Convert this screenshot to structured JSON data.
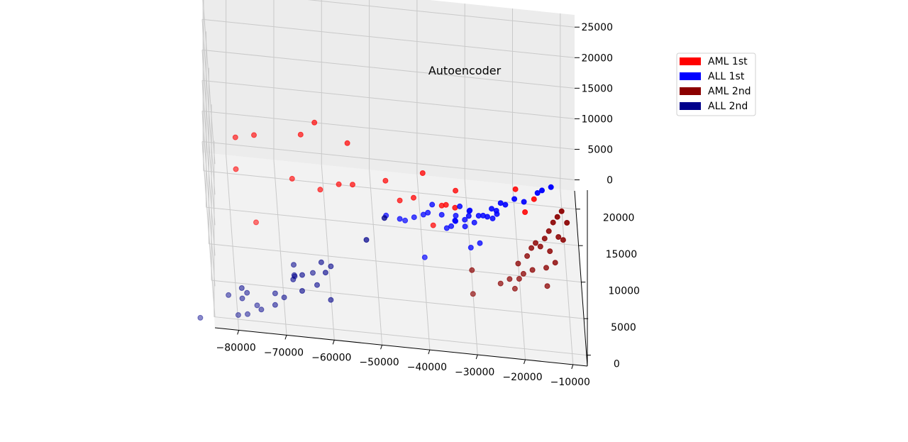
{
  "chart_data": {
    "type": "scatter",
    "projection": "3d",
    "title": "Autoencoder",
    "grid": true,
    "legend_placement": "top-right",
    "x_axis": {
      "label": "",
      "range": [
        -85000,
        -7000
      ],
      "ticks": [
        -80000,
        -70000,
        -60000,
        -50000,
        -40000,
        -30000,
        -20000,
        -10000
      ],
      "tick_labels": [
        "−80000",
        "−70000",
        "−60000",
        "−50000",
        "−40000",
        "−30000",
        "−20000",
        "−10000"
      ]
    },
    "y_axis": {
      "label": "",
      "range": [
        -1500,
        22500
      ],
      "ticks": [
        0,
        5000,
        10000,
        15000,
        20000
      ],
      "tick_labels": [
        "0",
        "5000",
        "10000",
        "15000",
        "20000"
      ]
    },
    "z_axis": {
      "label": "",
      "range": [
        -1800,
        27000
      ],
      "ticks": [
        0,
        5000,
        10000,
        15000,
        20000,
        25000
      ],
      "tick_labels": [
        "0",
        "5000",
        "10000",
        "15000",
        "20000",
        "25000"
      ]
    },
    "series": [
      {
        "name": "AML 1st",
        "color": "#ff0000",
        "points": [
          [
            -80000,
            5000,
            22000
          ],
          [
            -76000,
            6000,
            21500
          ],
          [
            -80000,
            4000,
            18000
          ],
          [
            -66000,
            8000,
            20000
          ],
          [
            -63000,
            9000,
            21000
          ],
          [
            -56000,
            10000,
            17000
          ],
          [
            -68000,
            6000,
            15000
          ],
          [
            -62000,
            7000,
            12500
          ],
          [
            -76000,
            2000,
            12000
          ],
          [
            -58000,
            8000,
            12500
          ],
          [
            -55000,
            9000,
            11500
          ],
          [
            -48000,
            10000,
            11500
          ],
          [
            -40000,
            12000,
            11000
          ],
          [
            -45000,
            10000,
            8500
          ],
          [
            -42000,
            11000,
            8000
          ],
          [
            -33000,
            13000,
            7500
          ],
          [
            -36000,
            12000,
            6000
          ],
          [
            -35000,
            13000,
            5000
          ],
          [
            -33000,
            14000,
            3500
          ],
          [
            -20000,
            17000,
            4000
          ],
          [
            -38000,
            10000,
            5000
          ],
          [
            -16000,
            18000,
            1500
          ],
          [
            -18000,
            17000,
            400
          ]
        ]
      },
      {
        "name": "ALL 1st",
        "color": "#0000ff",
        "points": [
          [
            -48000,
            9000,
            7000
          ],
          [
            -44000,
            9000,
            6500
          ],
          [
            -42000,
            10000,
            6000
          ],
          [
            -45000,
            10000,
            5500
          ],
          [
            -40000,
            10500,
            6000
          ],
          [
            -39000,
            11000,
            5800
          ],
          [
            -38000,
            12000,
            6000
          ],
          [
            -36000,
            12000,
            4500
          ],
          [
            -33000,
            12500,
            4000
          ],
          [
            -30000,
            13000,
            4500
          ],
          [
            -32000,
            14000,
            3800
          ],
          [
            -30000,
            14000,
            3200
          ],
          [
            -35000,
            11500,
            3000
          ],
          [
            -34000,
            12000,
            2800
          ],
          [
            -33000,
            13000,
            2500
          ],
          [
            -31000,
            13500,
            2300
          ],
          [
            -29000,
            13500,
            2000
          ],
          [
            -28000,
            14500,
            2000
          ],
          [
            -27000,
            15000,
            1500
          ],
          [
            -30000,
            15000,
            1200
          ],
          [
            -33000,
            14000,
            1400
          ],
          [
            -31000,
            13000,
            1800
          ],
          [
            -25000,
            15000,
            1200
          ],
          [
            -24000,
            16000,
            800
          ],
          [
            -25000,
            17000,
            400
          ],
          [
            -23000,
            18000,
            300
          ],
          [
            -22000,
            18000,
            100
          ],
          [
            -26000,
            16000,
            200
          ],
          [
            -24000,
            17000,
            150
          ],
          [
            -20000,
            19000,
            0
          ],
          [
            -18000,
            19000,
            -300
          ],
          [
            -15000,
            20500,
            -400
          ],
          [
            -14000,
            21000,
            -500
          ],
          [
            -30000,
            11000,
            800
          ],
          [
            -28000,
            12000,
            500
          ],
          [
            -12000,
            22000,
            -1000
          ],
          [
            -40000,
            8000,
            2000
          ]
        ]
      },
      {
        "name": "AML 2nd",
        "color": "#8b0000",
        "points": [
          [
            -30000,
            9000,
            -500
          ],
          [
            -30000,
            7000,
            -2000
          ],
          [
            -24000,
            9000,
            -2200
          ],
          [
            -22000,
            10000,
            -2500
          ],
          [
            -20000,
            10000,
            -2300
          ],
          [
            -20000,
            12000,
            -2200
          ],
          [
            -18000,
            13000,
            -2000
          ],
          [
            -17000,
            14000,
            -1800
          ],
          [
            -16000,
            15000,
            -2100
          ],
          [
            -14000,
            16000,
            -2400
          ],
          [
            -15000,
            15000,
            -2600
          ],
          [
            -13000,
            17000,
            -2300
          ],
          [
            -12000,
            18000,
            -2000
          ],
          [
            -11000,
            19000,
            -2200
          ],
          [
            -10000,
            20000,
            -2400
          ],
          [
            -19000,
            11000,
            -2600
          ],
          [
            -21000,
            9000,
            -2800
          ],
          [
            -17000,
            12000,
            -3000
          ],
          [
            -13000,
            15000,
            -3200
          ],
          [
            -11000,
            17000,
            -3100
          ],
          [
            -9000,
            19000,
            -3000
          ],
          [
            -10000,
            17000,
            -3500
          ],
          [
            -14000,
            13000,
            -3600
          ],
          [
            -12000,
            14000,
            -3800
          ],
          [
            -14000,
            11000,
            -4200
          ]
        ]
      },
      {
        "name": "ALL 2nd",
        "color": "#00008b",
        "points": [
          [
            -68000,
            1000,
            5000
          ],
          [
            -68000,
            2000,
            4000
          ],
          [
            -68000,
            3000,
            4500
          ],
          [
            -64000,
            3000,
            3500
          ],
          [
            -62000,
            5000,
            3000
          ],
          [
            -60000,
            5000,
            2500
          ],
          [
            -82000,
            0,
            2000
          ],
          [
            -78000,
            1000,
            1500
          ],
          [
            -79000,
            2000,
            1000
          ],
          [
            -79000,
            1000,
            500
          ],
          [
            -76000,
            0,
            800
          ],
          [
            -72000,
            2000,
            700
          ],
          [
            -68000,
            4000,
            900
          ],
          [
            -66000,
            5000,
            600
          ],
          [
            -63000,
            4000,
            400
          ],
          [
            -61000,
            6000,
            200
          ],
          [
            -80000,
            -500,
            -500
          ],
          [
            -78000,
            0,
            -800
          ],
          [
            -75000,
            1000,
            -1000
          ],
          [
            -72000,
            2000,
            -1200
          ],
          [
            -70000,
            3000,
            -1000
          ],
          [
            -66000,
            5000,
            -2000
          ],
          [
            -88000,
            -1000,
            -1000
          ],
          [
            -60000,
            5000,
            -3000
          ],
          [
            -48000,
            12000,
            3000
          ],
          [
            -52000,
            10000,
            1500
          ]
        ]
      }
    ]
  }
}
